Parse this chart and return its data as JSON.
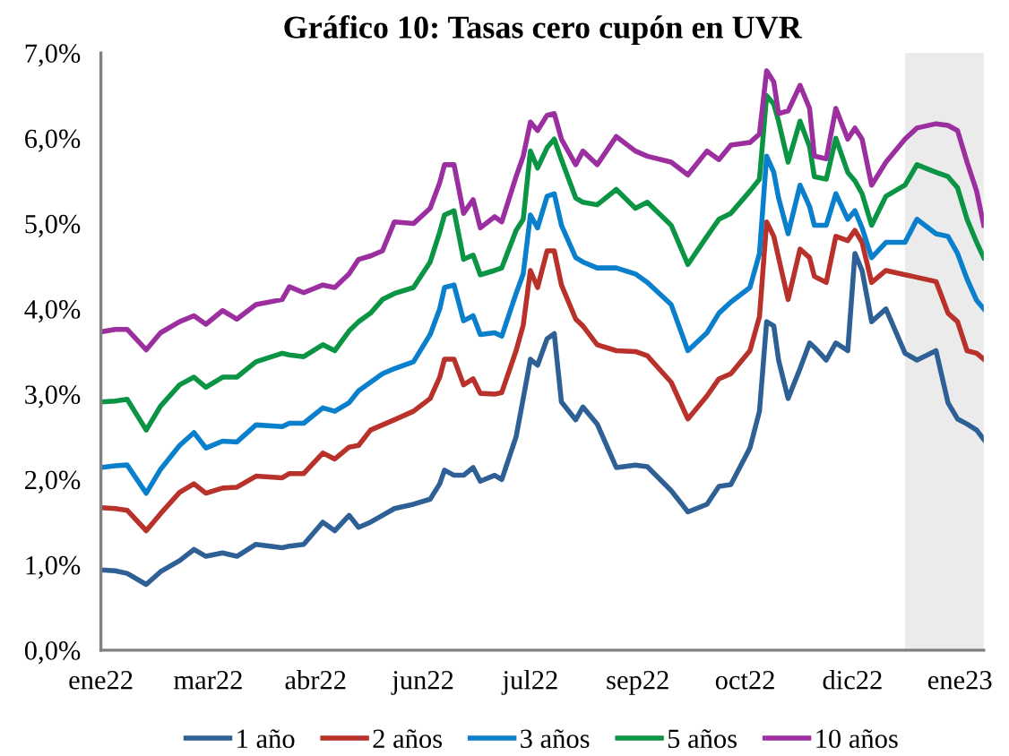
{
  "chart_data": {
    "type": "line",
    "title": "Gráfico 10: Tasas cero cupón en UVR",
    "x": [
      "2022-01-28",
      "2022-02-03",
      "2022-02-08",
      "2022-02-16",
      "2022-02-22",
      "2022-03-02",
      "2022-03-08",
      "2022-03-13",
      "2022-03-20",
      "2022-03-26",
      "2022-04-03",
      "2022-04-14",
      "2022-04-17",
      "2022-04-23",
      "2022-05-01",
      "2022-05-06",
      "2022-05-12",
      "2022-05-16",
      "2022-05-21",
      "2022-05-26",
      "2022-05-31",
      "2022-06-08",
      "2022-06-15",
      "2022-06-19",
      "2022-06-21",
      "2022-06-25",
      "2022-06-29",
      "2022-07-03",
      "2022-07-06",
      "2022-07-12",
      "2022-07-15",
      "2022-07-21",
      "2022-07-24",
      "2022-07-27",
      "2022-07-30",
      "2022-08-03",
      "2022-08-06",
      "2022-08-09",
      "2022-08-15",
      "2022-08-18",
      "2022-08-24",
      "2022-09-01",
      "2022-09-09",
      "2022-09-14",
      "2022-09-24",
      "2022-10-01",
      "2022-10-09",
      "2022-10-14",
      "2022-10-19",
      "2022-10-27",
      "2022-10-31",
      "2022-11-03",
      "2022-11-06",
      "2022-11-08",
      "2022-11-12",
      "2022-11-17",
      "2022-11-21",
      "2022-11-23",
      "2022-11-28",
      "2022-12-02",
      "2022-12-07",
      "2022-12-10",
      "2022-12-13",
      "2022-12-17",
      "2022-12-23",
      "2022-12-31",
      "2023-01-05",
      "2023-01-13",
      "2023-01-18",
      "2023-01-22",
      "2023-01-26",
      "2023-01-30",
      "2023-02-02"
    ],
    "series": [
      {
        "name": "1 año",
        "color": "#2e6095",
        "values": [
          0.94,
          0.93,
          0.9,
          0.77,
          0.92,
          1.05,
          1.18,
          1.1,
          1.14,
          1.1,
          1.24,
          1.2,
          1.22,
          1.24,
          1.5,
          1.4,
          1.58,
          1.44,
          1.5,
          1.58,
          1.66,
          1.71,
          1.77,
          1.95,
          2.11,
          2.05,
          2.05,
          2.14,
          1.98,
          2.05,
          2.0,
          2.5,
          2.95,
          3.41,
          3.34,
          3.65,
          3.71,
          2.91,
          2.7,
          2.85,
          2.65,
          2.14,
          2.17,
          2.15,
          1.87,
          1.62,
          1.71,
          1.92,
          1.94,
          2.37,
          2.8,
          3.85,
          3.8,
          3.4,
          2.95,
          3.3,
          3.6,
          3.55,
          3.4,
          3.6,
          3.51,
          4.65,
          4.45,
          3.85,
          4.0,
          3.48,
          3.4,
          3.51,
          2.9,
          2.71,
          2.65,
          2.58,
          2.47
        ]
      },
      {
        "name": "2 años",
        "color": "#b8312a",
        "values": [
          1.67,
          1.66,
          1.64,
          1.4,
          1.6,
          1.85,
          1.95,
          1.84,
          1.9,
          1.91,
          2.04,
          2.02,
          2.07,
          2.07,
          2.31,
          2.24,
          2.38,
          2.4,
          2.58,
          2.64,
          2.7,
          2.8,
          2.95,
          3.2,
          3.41,
          3.41,
          3.11,
          3.18,
          3.01,
          3.0,
          3.02,
          3.51,
          3.81,
          4.45,
          4.25,
          4.68,
          4.68,
          4.28,
          3.88,
          3.8,
          3.58,
          3.51,
          3.5,
          3.45,
          3.14,
          2.71,
          2.98,
          3.18,
          3.24,
          3.51,
          3.91,
          5.02,
          4.85,
          4.6,
          4.11,
          4.7,
          4.6,
          4.38,
          4.31,
          4.85,
          4.8,
          4.92,
          4.78,
          4.31,
          4.45,
          4.4,
          4.37,
          4.32,
          3.95,
          3.85,
          3.51,
          3.48,
          3.41
        ]
      },
      {
        "name": "3 años",
        "color": "#0a7fcc",
        "values": [
          2.14,
          2.16,
          2.17,
          1.84,
          2.12,
          2.4,
          2.55,
          2.37,
          2.45,
          2.44,
          2.64,
          2.62,
          2.66,
          2.66,
          2.84,
          2.8,
          2.9,
          3.04,
          3.14,
          3.24,
          3.3,
          3.38,
          3.7,
          4.0,
          4.25,
          4.28,
          3.86,
          3.92,
          3.7,
          3.72,
          3.68,
          4.18,
          4.41,
          5.1,
          4.95,
          5.32,
          5.35,
          4.98,
          4.6,
          4.55,
          4.48,
          4.48,
          4.41,
          4.31,
          4.05,
          3.51,
          3.72,
          3.95,
          4.08,
          4.25,
          4.65,
          5.79,
          5.6,
          5.3,
          4.88,
          5.45,
          5.2,
          4.98,
          4.98,
          5.35,
          5.05,
          5.15,
          4.95,
          4.6,
          4.78,
          4.78,
          5.05,
          4.88,
          4.85,
          4.65,
          4.35,
          4.1,
          4.0
        ]
      },
      {
        "name": "5 años",
        "color": "#0a9444",
        "values": [
          2.91,
          2.92,
          2.94,
          2.58,
          2.86,
          3.11,
          3.2,
          3.08,
          3.2,
          3.2,
          3.38,
          3.48,
          3.46,
          3.44,
          3.58,
          3.51,
          3.74,
          3.85,
          3.95,
          4.11,
          4.18,
          4.25,
          4.55,
          4.9,
          5.1,
          5.15,
          4.58,
          4.63,
          4.4,
          4.45,
          4.48,
          4.92,
          5.05,
          5.85,
          5.65,
          5.89,
          5.99,
          5.75,
          5.3,
          5.25,
          5.22,
          5.4,
          5.18,
          5.25,
          4.98,
          4.52,
          4.85,
          5.05,
          5.12,
          5.38,
          5.52,
          6.5,
          6.4,
          6.2,
          5.72,
          6.2,
          5.9,
          5.55,
          5.52,
          6.0,
          5.6,
          5.5,
          5.35,
          4.98,
          5.32,
          5.45,
          5.69,
          5.6,
          5.55,
          5.42,
          5.05,
          4.78,
          4.6
        ]
      },
      {
        "name": "10 años",
        "color": "#9b2fa0",
        "values": [
          3.73,
          3.76,
          3.76,
          3.52,
          3.72,
          3.85,
          3.92,
          3.82,
          3.98,
          3.88,
          4.05,
          4.11,
          4.26,
          4.19,
          4.28,
          4.25,
          4.41,
          4.58,
          4.62,
          4.68,
          5.02,
          5.0,
          5.18,
          5.48,
          5.69,
          5.69,
          5.12,
          5.28,
          4.95,
          5.08,
          5.02,
          5.55,
          5.79,
          6.19,
          6.09,
          6.27,
          6.29,
          5.99,
          5.69,
          5.85,
          5.69,
          6.02,
          5.85,
          5.79,
          5.72,
          5.57,
          5.85,
          5.75,
          5.92,
          5.95,
          6.05,
          6.79,
          6.66,
          6.29,
          6.32,
          6.62,
          6.35,
          5.79,
          5.76,
          6.35,
          5.99,
          6.12,
          5.99,
          5.45,
          5.72,
          5.99,
          6.12,
          6.17,
          6.15,
          6.09,
          5.72,
          5.38,
          4.98
        ]
      }
    ],
    "xlim": [
      "2022-01-28",
      "2023-02-02"
    ],
    "xticks": [
      {
        "value": "2022-01-28",
        "label": "ene22"
      },
      {
        "value": "2022-03-14",
        "label": "mar22"
      },
      {
        "value": "2022-04-28",
        "label": "abr22"
      },
      {
        "value": "2022-06-12",
        "label": "jun22"
      },
      {
        "value": "2022-07-27",
        "label": "jul22"
      },
      {
        "value": "2022-09-10",
        "label": "sep22"
      },
      {
        "value": "2022-10-25",
        "label": "oct22"
      },
      {
        "value": "2022-12-09",
        "label": "dic22"
      },
      {
        "value": "2023-01-23",
        "label": "ene23"
      }
    ],
    "ylim": [
      0,
      7
    ],
    "yticks": [
      {
        "value": 0,
        "label": "0,0%"
      },
      {
        "value": 1,
        "label": "1,0%"
      },
      {
        "value": 2,
        "label": "2,0%"
      },
      {
        "value": 3,
        "label": "3,0%"
      },
      {
        "value": 4,
        "label": "4,0%"
      },
      {
        "value": 5,
        "label": "5,0%"
      },
      {
        "value": 6,
        "label": "6,0%"
      },
      {
        "value": 7,
        "label": "7,0%"
      }
    ],
    "bands": [
      {
        "axis": "x",
        "from": "2022-12-31",
        "to": "2023-02-02",
        "color": "#ebebeb"
      }
    ],
    "grid": false,
    "legend": "bottom",
    "marker": "none",
    "line_style": "solid"
  }
}
